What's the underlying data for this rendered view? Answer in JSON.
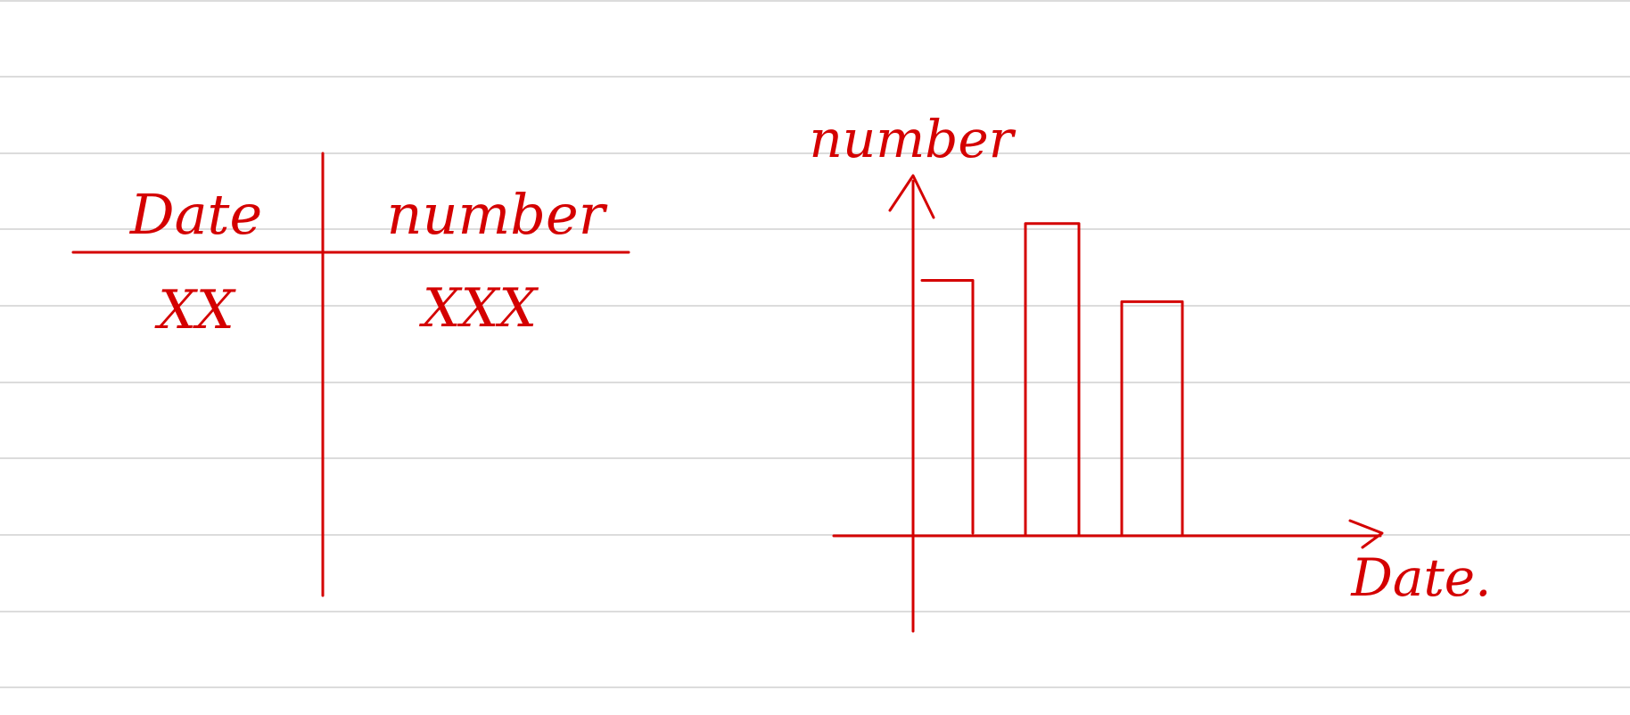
{
  "notebook": {
    "paper": "ruled",
    "ink_color": "#d40000",
    "rule_color": "#dcdcdc"
  },
  "table": {
    "headers": [
      "Date",
      "number"
    ],
    "rows": [
      [
        "XX",
        "XXX"
      ]
    ]
  },
  "chart_data": {
    "type": "bar",
    "xlabel": "Date.",
    "ylabel": "number",
    "categories": [
      "",
      "",
      ""
    ],
    "values": [
      0.72,
      0.88,
      0.66
    ],
    "grid": false,
    "note": "hand-drawn sketch with no scale; values are relative bar heights"
  }
}
